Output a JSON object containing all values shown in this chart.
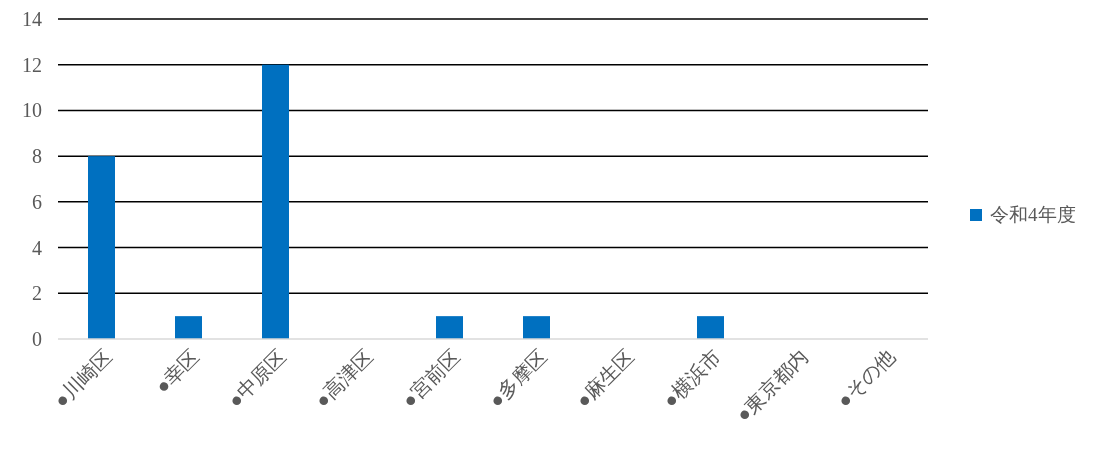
{
  "chart_data": {
    "type": "bar",
    "categories": [
      "●川崎区",
      "●幸区",
      "●中原区",
      "●高津区",
      "●宮前区",
      "●多摩区",
      "●麻生区",
      "●横浜市",
      "●東京都内",
      "●その他"
    ],
    "series": [
      {
        "name": "令和4年度",
        "color": "#0070c0",
        "values": [
          8,
          1,
          12,
          0,
          1,
          1,
          0,
          1,
          0,
          0
        ]
      }
    ],
    "ylim": [
      0,
      14
    ],
    "yticks": [
      0,
      2,
      4,
      6,
      8,
      10,
      12,
      14
    ],
    "grid": "y",
    "legend": "right"
  }
}
